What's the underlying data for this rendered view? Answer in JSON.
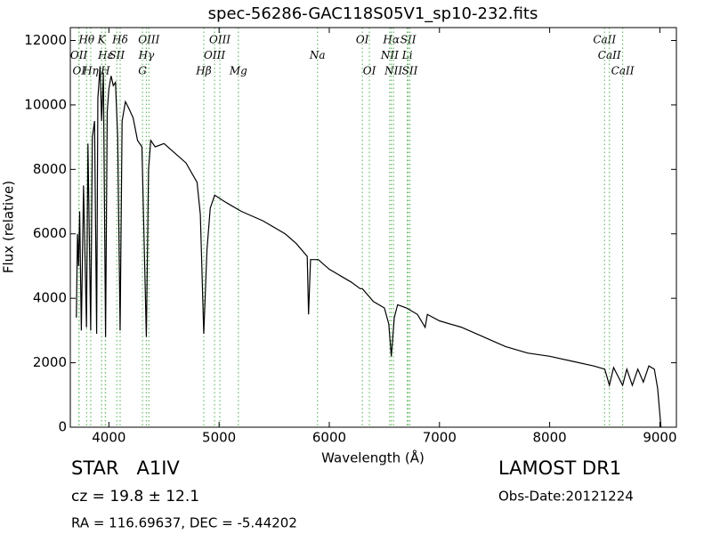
{
  "chart_data": {
    "type": "line",
    "title": "spec-56286-GAC118S05V1_sp10-232.fits",
    "xlabel": "Wavelength (Å)",
    "ylabel": "Flux (relative)",
    "xlim": [
      3650,
      9150
    ],
    "ylim": [
      0,
      12400
    ],
    "xticks": [
      4000,
      5000,
      6000,
      7000,
      8000,
      9000
    ],
    "yticks": [
      0,
      2000,
      4000,
      6000,
      8000,
      10000,
      12000
    ],
    "color": "#000000",
    "spectral_line_color": "#66bb66",
    "x": [
      3705,
      3715,
      3725,
      3735,
      3750,
      3770,
      3797,
      3810,
      3835,
      3850,
      3870,
      3889,
      3900,
      3920,
      3934,
      3950,
      3970,
      3985,
      4000,
      4020,
      4040,
      4060,
      4080,
      4102,
      4120,
      4150,
      4180,
      4220,
      4260,
      4300,
      4340,
      4360,
      4380,
      4420,
      4500,
      4600,
      4700,
      4800,
      4830,
      4861,
      4890,
      4920,
      4960,
      5050,
      5200,
      5400,
      5600,
      5700,
      5800,
      5812,
      5830,
      5900,
      6000,
      6100,
      6200,
      6280,
      6300,
      6400,
      6500,
      6540,
      6563,
      6590,
      6620,
      6700,
      6800,
      6870,
      6890,
      7000,
      7200,
      7400,
      7600,
      7800,
      8000,
      8200,
      8400,
      8500,
      8542,
      8580,
      8662,
      8700,
      8750,
      8800,
      8850,
      8900,
      8950,
      8980,
      9010
    ],
    "values": [
      3400,
      6000,
      5000,
      6700,
      3000,
      7500,
      3100,
      8800,
      3000,
      9000,
      9500,
      2900,
      10200,
      11200,
      9500,
      11000,
      2800,
      9800,
      10500,
      10900,
      10600,
      10700,
      9000,
      3000,
      9500,
      10100,
      9900,
      9600,
      8900,
      8700,
      2800,
      8000,
      8900,
      8700,
      8800,
      8500,
      8200,
      7600,
      6600,
      2900,
      5500,
      6800,
      7200,
      7000,
      6700,
      6400,
      6000,
      5700,
      5300,
      3500,
      5200,
      5200,
      4900,
      4700,
      4500,
      4300,
      4300,
      3900,
      3700,
      3200,
      2200,
      3400,
      3800,
      3700,
      3500,
      3100,
      3500,
      3300,
      3100,
      2800,
      2500,
      2300,
      2200,
      2050,
      1900,
      1800,
      1300,
      1850,
      1300,
      1800,
      1300,
      1800,
      1400,
      1900,
      1800,
      1200,
      0
    ],
    "spectral_line_tiers": [
      [
        {
          "label": "Hθ",
          "wavelength": 3798
        },
        {
          "label": "K",
          "wavelength": 3934
        },
        {
          "label": "Hδ",
          "wavelength": 4102
        },
        {
          "label": "OIII",
          "wavelength": 4363
        },
        {
          "label": "OIII",
          "wavelength": 5007
        },
        {
          "label": "OI",
          "wavelength": 6300
        },
        {
          "label": "Hα",
          "wavelength": 6563
        },
        {
          "label": "SII",
          "wavelength": 6716
        },
        {
          "label": "CaII",
          "wavelength": 8498
        }
      ],
      [
        {
          "label": "OII",
          "wavelength": 3727
        },
        {
          "label": "Hε",
          "wavelength": 3970
        },
        {
          "label": "SII",
          "wavelength": 4072
        },
        {
          "label": "Hγ",
          "wavelength": 4340
        },
        {
          "label": "OIII",
          "wavelength": 4959
        },
        {
          "label": "Na",
          "wavelength": 5893
        },
        {
          "label": "NII",
          "wavelength": 6548
        },
        {
          "label": "Li",
          "wavelength": 6708
        },
        {
          "label": "CaII",
          "wavelength": 8542
        }
      ],
      [
        {
          "label": "OI",
          "wavelength": 3729
        },
        {
          "label": "Hη",
          "wavelength": 3835
        },
        {
          "label": "H",
          "wavelength": 3968
        },
        {
          "label": "G",
          "wavelength": 4305
        },
        {
          "label": "Hβ",
          "wavelength": 4861
        },
        {
          "label": "Mg",
          "wavelength": 5175
        },
        {
          "label": "OI",
          "wavelength": 6364
        },
        {
          "label": "NII",
          "wavelength": 6583
        },
        {
          "label": "SII",
          "wavelength": 6731
        },
        {
          "label": "CaII",
          "wavelength": 8662
        }
      ]
    ],
    "annotations": {
      "object_class": "STAR   A1IV",
      "redshift": "cz = 19.8 ± 12.1",
      "coordinates": "RA = 116.69637, DEC = -5.44202",
      "survey": "LAMOST DR1",
      "obs_date": "Obs-Date:20121224"
    }
  }
}
